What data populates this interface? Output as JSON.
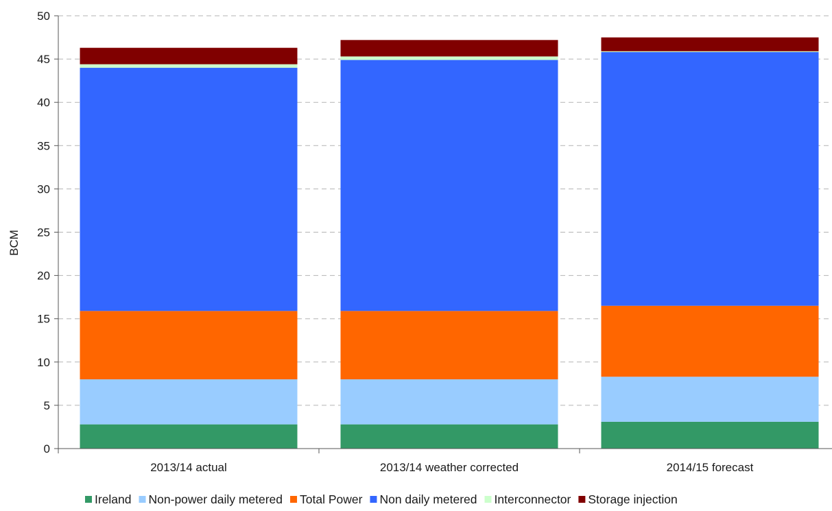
{
  "chart_data": {
    "type": "bar",
    "stacked": true,
    "title": "",
    "xlabel": "",
    "ylabel": "BCM",
    "ylim": [
      0,
      50
    ],
    "yticks": [
      0,
      5,
      10,
      15,
      20,
      25,
      30,
      35,
      40,
      45,
      50
    ],
    "grid": "horizontal-dashed",
    "legend_position": "bottom",
    "categories": [
      "2013/14 actual",
      "2013/14 weather corrected",
      "2014/15 forecast"
    ],
    "series": [
      {
        "name": "Ireland",
        "color": "#339966",
        "values": [
          2.8,
          2.8,
          3.1
        ]
      },
      {
        "name": "Non-power daily metered",
        "color": "#99ccff",
        "values": [
          5.2,
          5.2,
          5.2
        ]
      },
      {
        "name": "Total Power",
        "color": "#ff6600",
        "values": [
          7.9,
          7.9,
          8.2
        ]
      },
      {
        "name": "Non daily metered",
        "color": "#3366ff",
        "values": [
          28.1,
          29.0,
          29.3
        ]
      },
      {
        "name": "Interconnector",
        "color": "#ccffcc",
        "values": [
          0.4,
          0.4,
          0.1
        ]
      },
      {
        "name": "Storage injection",
        "color": "#800000",
        "values": [
          1.9,
          1.9,
          1.6
        ]
      }
    ]
  }
}
